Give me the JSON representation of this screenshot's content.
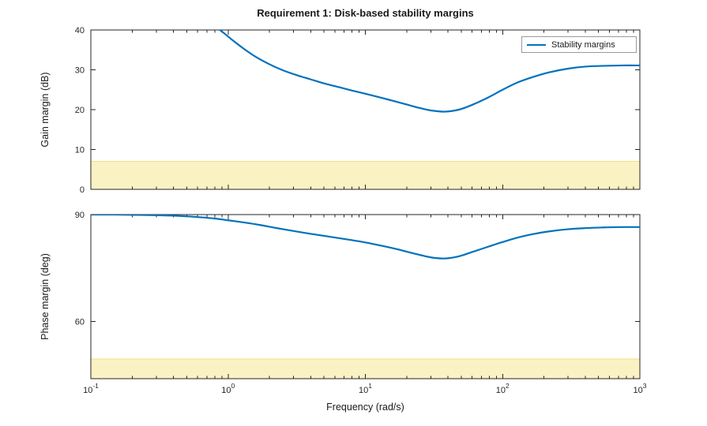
{
  "figure": {
    "title": "Requirement 1: Disk-based stability margins",
    "xlabel": "Frequency (rad/s)"
  },
  "colors": {
    "line": "#0072BD",
    "band_fill": "#FBF2C4",
    "band_edge": "#EFE189",
    "axis": "#262626",
    "tick_label": "#262626"
  },
  "chart_data": [
    {
      "type": "line",
      "name": "gain-margin",
      "legend": "Stability margins",
      "ylabel": "Gain margin (dB)",
      "xscale": "log",
      "xlim": [
        0.1,
        1000
      ],
      "ylim": [
        0,
        40
      ],
      "yticks": [
        0,
        10,
        20,
        30,
        40
      ],
      "xticks": [
        {
          "value": 0.1,
          "exp": "-1"
        },
        {
          "value": 1,
          "exp": "0"
        },
        {
          "value": 10,
          "exp": "1"
        },
        {
          "value": 100,
          "exp": "2"
        },
        {
          "value": 1000,
          "exp": "3"
        }
      ],
      "requirement_band": {
        "from": 0,
        "to": 7
      },
      "series": [
        {
          "name": "Stability margins",
          "x": [
            0.55,
            0.65,
            0.8,
            0.95,
            1.1,
            1.3,
            1.6,
            2,
            2.5,
            3.2,
            4,
            5,
            6.5,
            8,
            10,
            13,
            16,
            20,
            25,
            30,
            38,
            48,
            60,
            80,
            100,
            130,
            170,
            220,
            300,
            400,
            550,
            750,
            1000
          ],
          "y": [
            46,
            43.6,
            41,
            39,
            37.2,
            35.3,
            33.2,
            31.4,
            29.9,
            28.6,
            27.6,
            26.6,
            25.6,
            24.8,
            24,
            23,
            22.2,
            21.3,
            20.4,
            19.8,
            19.5,
            20,
            21.2,
            23.2,
            25,
            26.9,
            28.3,
            29.4,
            30.3,
            30.8,
            31,
            31.1,
            31.1
          ]
        }
      ]
    },
    {
      "type": "line",
      "name": "phase-margin",
      "ylabel": "Phase margin (deg)",
      "xscale": "log",
      "xlim": [
        0.1,
        1000
      ],
      "ylim": [
        44,
        90
      ],
      "yticks": [
        60,
        90
      ],
      "xticks": [
        {
          "value": 0.1,
          "exp": "-1"
        },
        {
          "value": 1,
          "exp": "0"
        },
        {
          "value": 10,
          "exp": "1"
        },
        {
          "value": 100,
          "exp": "2"
        },
        {
          "value": 1000,
          "exp": "3"
        }
      ],
      "requirement_band": {
        "from": 44,
        "to": 49.5
      },
      "series": [
        {
          "name": "Stability margins",
          "x": [
            0.1,
            0.15,
            0.22,
            0.32,
            0.45,
            0.6,
            0.8,
            1,
            1.3,
            1.7,
            2.2,
            3,
            4,
            5.5,
            7.5,
            10,
            13,
            17,
            22,
            30,
            38,
            48,
            60,
            80,
            100,
            130,
            170,
            220,
            300,
            400,
            550,
            750,
            1000
          ],
          "y": [
            90,
            90,
            89.9,
            89.8,
            89.6,
            89.3,
            88.9,
            88.4,
            87.8,
            87.1,
            86.3,
            85.4,
            84.6,
            83.8,
            83,
            82.2,
            81.3,
            80.3,
            79.2,
            78,
            77.7,
            78.3,
            79.5,
            81.1,
            82.3,
            83.6,
            84.6,
            85.3,
            85.9,
            86.2,
            86.4,
            86.5,
            86.5
          ]
        }
      ]
    }
  ]
}
